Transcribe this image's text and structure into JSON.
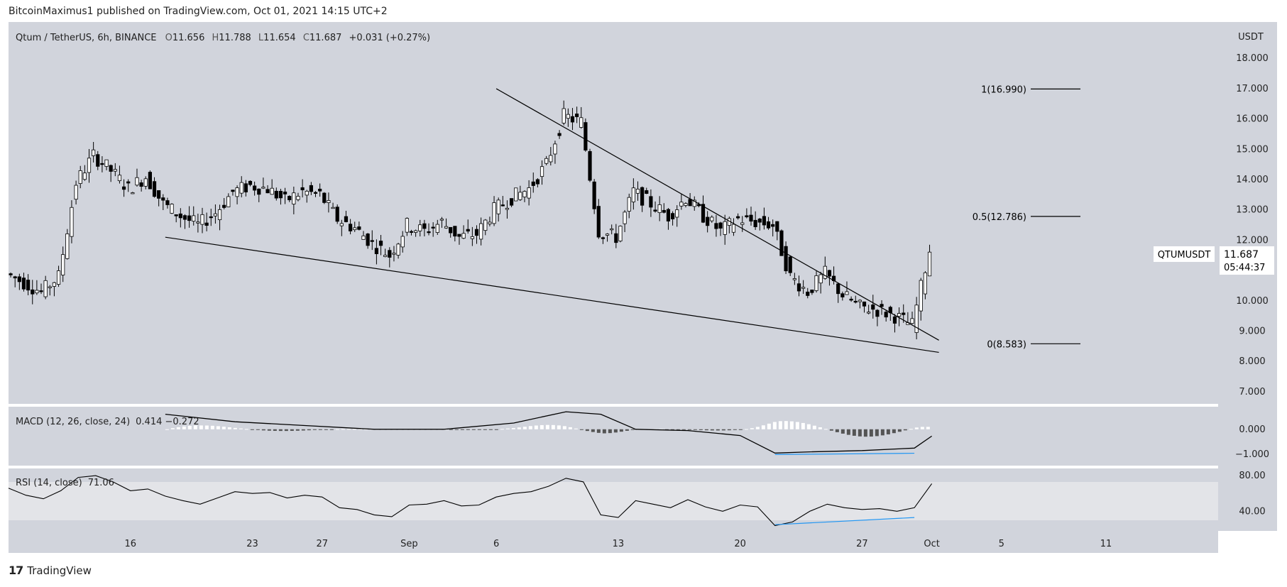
{
  "header": {
    "publisher_line": "BitcoinMaximus1 published on TradingView.com, Oct 01, 2021 14:15 UTC+2"
  },
  "footer": {
    "brand": "TradingView",
    "brand_mark": "17"
  },
  "chart_data": {
    "type": "candlestick",
    "title": "Qtum / TetherUS, 6h, BINANCE",
    "ohlc_legend": {
      "o": "11.656",
      "h": "11.788",
      "l": "11.654",
      "c": "11.687",
      "change": "+0.031 (+0.27%)"
    },
    "price_axis": {
      "unit": "USDT",
      "ticks": [
        "18.000",
        "17.000",
        "16.000",
        "15.000",
        "14.000",
        "13.000",
        "12.000",
        "11.000",
        "10.000",
        "9.000",
        "8.000",
        "7.000"
      ],
      "ylim": [
        6.6,
        19.2
      ]
    },
    "x_axis": {
      "ticks": [
        "16",
        "23",
        "27",
        "Sep",
        "6",
        "13",
        "20",
        "27",
        "Oct",
        "5",
        "11"
      ]
    },
    "price_label": {
      "symbol": "QTUMUSDT",
      "price": "11.687",
      "countdown": "05:44:37"
    },
    "fib_levels": [
      {
        "label": "1(16.990)",
        "value": 16.99
      },
      {
        "label": "0.5(12.786)",
        "value": 12.786
      },
      {
        "label": "0(8.583)",
        "value": 8.583
      }
    ],
    "trendlines": [
      {
        "name": "descending resistance",
        "from": {
          "date": "2021-09-06",
          "price": 17.0
        },
        "to": {
          "date": "2021-10-01",
          "price": 8.7
        }
      },
      {
        "name": "descending support",
        "from": {
          "date": "2021-08-18",
          "price": 12.1
        },
        "to": {
          "date": "2021-10-01",
          "price": 8.3
        }
      }
    ],
    "close_path": [
      [
        "2021-08-09",
        10.9
      ],
      [
        "2021-08-10",
        10.6
      ],
      [
        "2021-08-11",
        10.3
      ],
      [
        "2021-08-12",
        10.8
      ],
      [
        "2021-08-13",
        13.9
      ],
      [
        "2021-08-14",
        14.8
      ],
      [
        "2021-08-15",
        14.3
      ],
      [
        "2021-08-16",
        13.7
      ],
      [
        "2021-08-17",
        14.1
      ],
      [
        "2021-08-18",
        13.2
      ],
      [
        "2021-08-19",
        12.8
      ],
      [
        "2021-08-20",
        12.5
      ],
      [
        "2021-08-21",
        12.9
      ],
      [
        "2021-08-22",
        13.6
      ],
      [
        "2021-08-23",
        13.8
      ],
      [
        "2021-08-24",
        13.7
      ],
      [
        "2021-08-25",
        13.3
      ],
      [
        "2021-08-26",
        13.6
      ],
      [
        "2021-08-27",
        13.5
      ],
      [
        "2021-08-28",
        12.7
      ],
      [
        "2021-08-29",
        12.4
      ],
      [
        "2021-08-30",
        11.9
      ],
      [
        "2021-08-31",
        11.5
      ],
      [
        "2021-09-01",
        12.5
      ],
      [
        "2021-09-02",
        12.3
      ],
      [
        "2021-09-03",
        12.6
      ],
      [
        "2021-09-04",
        12.1
      ],
      [
        "2021-09-05",
        12.2
      ],
      [
        "2021-09-06",
        13.0
      ],
      [
        "2021-09-07",
        13.4
      ],
      [
        "2021-09-08",
        13.7
      ],
      [
        "2021-09-09",
        14.5
      ],
      [
        "2021-09-10",
        16.1
      ],
      [
        "2021-09-11",
        15.9
      ],
      [
        "2021-09-12",
        12.3
      ],
      [
        "2021-09-13",
        12.1
      ],
      [
        "2021-09-14",
        13.6
      ],
      [
        "2021-09-15",
        13.2
      ],
      [
        "2021-09-16",
        12.8
      ],
      [
        "2021-09-17",
        13.4
      ],
      [
        "2021-09-18",
        12.8
      ],
      [
        "2021-09-19",
        12.3
      ],
      [
        "2021-09-20",
        12.7
      ],
      [
        "2021-09-21",
        12.6
      ],
      [
        "2021-09-22",
        12.5
      ],
      [
        "2021-09-23",
        10.8
      ],
      [
        "2021-09-24",
        10.3
      ],
      [
        "2021-09-25",
        10.9
      ],
      [
        "2021-09-26",
        10.2
      ],
      [
        "2021-09-27",
        9.8
      ],
      [
        "2021-09-28",
        9.7
      ],
      [
        "2021-09-29",
        9.5
      ],
      [
        "2021-09-30",
        9.2
      ],
      [
        "2021-10-01",
        11.687
      ]
    ],
    "macd": {
      "label": "MACD (12, 26, close, 24)",
      "values": "0.414  −0.272",
      "ticks": [
        "0.000",
        "−1.000"
      ],
      "ylim": [
        -1.45,
        0.9
      ],
      "macd_line": [
        [
          "2021-08-18",
          0.6
        ],
        [
          "2021-08-22",
          0.3
        ],
        [
          "2021-08-26",
          0.15
        ],
        [
          "2021-08-30",
          0.0
        ],
        [
          "2021-09-03",
          0.0
        ],
        [
          "2021-09-07",
          0.25
        ],
        [
          "2021-09-10",
          0.7
        ],
        [
          "2021-09-12",
          0.6
        ],
        [
          "2021-09-14",
          0.0
        ],
        [
          "2021-09-17",
          -0.05
        ],
        [
          "2021-09-20",
          -0.25
        ],
        [
          "2021-09-22",
          -0.95
        ],
        [
          "2021-09-24",
          -0.9
        ],
        [
          "2021-09-27",
          -0.85
        ],
        [
          "2021-09-30",
          -0.75
        ],
        [
          "2021-10-01",
          -0.272
        ]
      ]
    },
    "rsi": {
      "label": "RSI (14, close)",
      "value": "71.06",
      "ticks": [
        "80.00",
        "40.00"
      ],
      "ylim": [
        18,
        88
      ],
      "band": [
        30,
        70
      ],
      "line": [
        [
          "2021-08-09",
          66
        ],
        [
          "2021-08-10",
          58
        ],
        [
          "2021-08-11",
          54
        ],
        [
          "2021-08-12",
          63
        ],
        [
          "2021-08-13",
          78
        ],
        [
          "2021-08-14",
          80
        ],
        [
          "2021-08-15",
          73
        ],
        [
          "2021-08-16",
          63
        ],
        [
          "2021-08-17",
          65
        ],
        [
          "2021-08-18",
          57
        ],
        [
          "2021-08-19",
          52
        ],
        [
          "2021-08-20",
          48
        ],
        [
          "2021-08-21",
          55
        ],
        [
          "2021-08-22",
          62
        ],
        [
          "2021-08-23",
          60
        ],
        [
          "2021-08-24",
          61
        ],
        [
          "2021-08-25",
          55
        ],
        [
          "2021-08-26",
          58
        ],
        [
          "2021-08-27",
          56
        ],
        [
          "2021-08-28",
          44
        ],
        [
          "2021-08-29",
          42
        ],
        [
          "2021-08-30",
          36
        ],
        [
          "2021-08-31",
          34
        ],
        [
          "2021-09-01",
          47
        ],
        [
          "2021-09-02",
          48
        ],
        [
          "2021-09-03",
          52
        ],
        [
          "2021-09-04",
          46
        ],
        [
          "2021-09-05",
          47
        ],
        [
          "2021-09-06",
          56
        ],
        [
          "2021-09-07",
          60
        ],
        [
          "2021-09-08",
          62
        ],
        [
          "2021-09-09",
          68
        ],
        [
          "2021-09-10",
          77
        ],
        [
          "2021-09-11",
          73
        ],
        [
          "2021-09-12",
          36
        ],
        [
          "2021-09-13",
          33
        ],
        [
          "2021-09-14",
          52
        ],
        [
          "2021-09-15",
          48
        ],
        [
          "2021-09-16",
          44
        ],
        [
          "2021-09-17",
          53
        ],
        [
          "2021-09-18",
          45
        ],
        [
          "2021-09-19",
          40
        ],
        [
          "2021-09-20",
          47
        ],
        [
          "2021-09-21",
          45
        ],
        [
          "2021-09-22",
          24
        ],
        [
          "2021-09-23",
          28
        ],
        [
          "2021-09-24",
          40
        ],
        [
          "2021-09-25",
          48
        ],
        [
          "2021-09-26",
          44
        ],
        [
          "2021-09-27",
          42
        ],
        [
          "2021-09-28",
          43
        ],
        [
          "2021-09-29",
          40
        ],
        [
          "2021-09-30",
          44
        ],
        [
          "2021-10-01",
          71
        ]
      ]
    },
    "colors": {
      "background": "#d1d4dc",
      "chart_frame": "#ffffff",
      "band_fill": "#e3e4e8",
      "up_candle": "#ffffff",
      "down_candle": "#000000",
      "divergence_line": "#2196f3",
      "label_text": "#000000"
    }
  }
}
